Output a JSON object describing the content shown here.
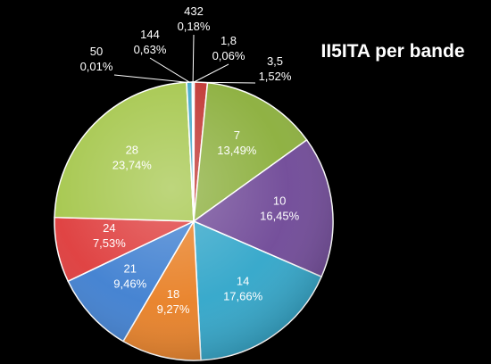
{
  "chart_data": {
    "type": "pie",
    "title": "II5ITA per bande",
    "categories": [
      "1,8",
      "3,5",
      "7",
      "10",
      "14",
      "18",
      "21",
      "24",
      "28",
      "50",
      "144",
      "432"
    ],
    "percent_labels": [
      "0,06%",
      "1,52%",
      "13,49%",
      "16,45%",
      "17,66%",
      "9,27%",
      "9,46%",
      "7,53%",
      "23,74%",
      "0,01%",
      "0,63%",
      "0,18%"
    ],
    "values": [
      0.06,
      1.52,
      13.49,
      16.45,
      17.66,
      9.27,
      9.46,
      7.53,
      23.74,
      0.01,
      0.63,
      0.18
    ],
    "colors": [
      "#b0b0b0",
      "#c0322e",
      "#8aae3a",
      "#6e4796",
      "#2fa5c9",
      "#e87f24",
      "#3d7ed0",
      "#de3a3a",
      "#a4c64a",
      "#ededed",
      "#40a8c8",
      "#9fbde0"
    ],
    "label_colors": [
      "#ffffff",
      "#ffffff",
      "#ffffff",
      "#ffffff",
      "#ffffff",
      "#ffffff",
      "#ffffff",
      "#ffffff",
      "#ffffff",
      "#ffffff",
      "#ffffff",
      "#ffffff"
    ],
    "legend": "none"
  }
}
